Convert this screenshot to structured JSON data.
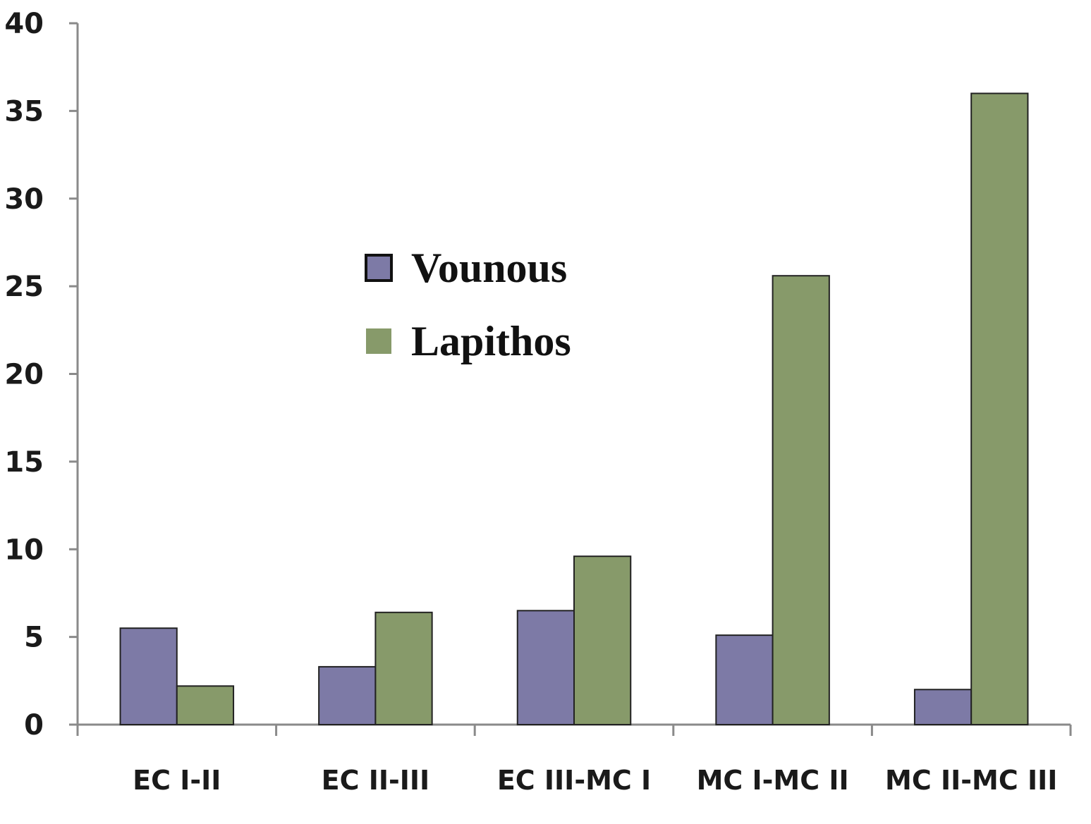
{
  "chart_data": {
    "type": "bar",
    "categories": [
      "EC I-II",
      "EC II-III",
      "EC III-MC I",
      "MC I-MC II",
      "MC II-MC III"
    ],
    "series": [
      {
        "name": "Vounous",
        "values": [
          5.5,
          3.3,
          6.5,
          5.1,
          2.0
        ],
        "color": "#7d7aa6"
      },
      {
        "name": "Lapithos",
        "values": [
          2.2,
          6.4,
          9.6,
          25.6,
          36.0
        ],
        "color": "#879a6a"
      }
    ],
    "title": "",
    "xlabel": "",
    "ylabel": "",
    "ylim": [
      0,
      40
    ],
    "yticks": [
      "0",
      "5",
      "10",
      "15",
      "20",
      "25",
      "30",
      "35",
      "40"
    ],
    "grid": false,
    "legend": {
      "placement": "upper-left-center"
    }
  }
}
